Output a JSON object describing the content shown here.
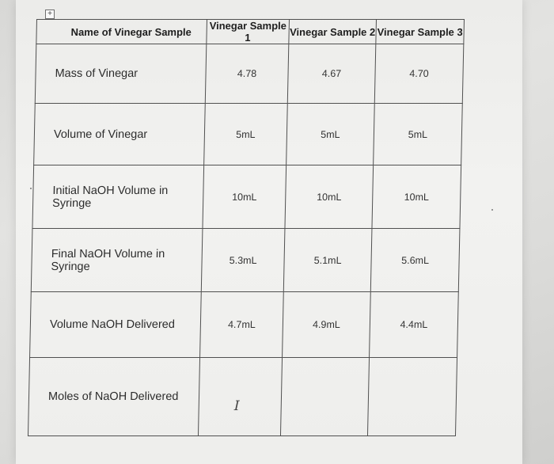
{
  "table": {
    "header": {
      "name": "Name of Vinegar Sample",
      "sample1": "Vinegar Sample 1",
      "sample2": "Vinegar Sample 2",
      "sample3": "Vinegar Sample 3"
    },
    "rows": [
      {
        "label": "Mass of Vinegar",
        "s1": "4.78",
        "s2": "4.67",
        "s3": "4.70"
      },
      {
        "label": "Volume of Vinegar",
        "s1": "5mL",
        "s2": "5mL",
        "s3": "5mL"
      },
      {
        "label": "Initial NaOH Volume in Syringe",
        "s1": "10mL",
        "s2": "10mL",
        "s3": "10mL"
      },
      {
        "label": "Final NaOH Volume in Syringe",
        "s1": "5.3mL",
        "s2": "5.1mL",
        "s3": "5.6mL"
      },
      {
        "label": "Volume NaOH Delivered",
        "s1": "4.7mL",
        "s2": "4.9mL",
        "s3": "4.4mL"
      },
      {
        "label": "Moles of NaOH Delivered",
        "s1": "",
        "s2": "",
        "s3": ""
      }
    ]
  },
  "icons": {
    "move_handle": "move-handle-icon",
    "text_cursor": "text-cursor-icon"
  }
}
